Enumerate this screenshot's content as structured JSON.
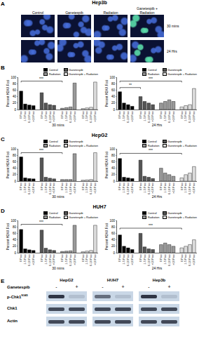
{
  "panels": {
    "A": {
      "label": "A",
      "title": "Hep3b",
      "columns": [
        "Control",
        "Ganetespib",
        "Radiation",
        "Ganetespib + Radiation"
      ],
      "rows": [
        "30 mins",
        "24 Hrs"
      ]
    },
    "B": {
      "label": "B"
    },
    "C": {
      "label": "C",
      "title": "HepG2"
    },
    "D": {
      "label": "D",
      "title": "HUH7"
    },
    "E": {
      "label": "E",
      "treatment": "Ganetespib",
      "cell_lines": [
        "HepG2",
        "HUH7",
        "Hep3b"
      ],
      "lanes": [
        "-",
        "+"
      ],
      "rows": [
        {
          "text": "p-Chk1",
          "sup": "S345"
        },
        {
          "text": "Chk1"
        },
        {
          "text": "Actin"
        }
      ]
    }
  },
  "chart_data": [
    {
      "type": "bar",
      "x_label": "30 mins",
      "y_label": "Percent H2AX Foci",
      "categories": [
        "0 Foci",
        "1-5 Foci",
        "6-10 Foci",
        ">10 Foci"
      ],
      "series": [
        {
          "name": "Control",
          "color": "#000000",
          "values": [
            57,
            17,
            14,
            12
          ]
        },
        {
          "name": "Ganetespib",
          "color": "#555555",
          "values": [
            52,
            20,
            15,
            13
          ]
        },
        {
          "name": "Radiation",
          "color": "#999999",
          "values": [
            4,
            6,
            8,
            82
          ]
        },
        {
          "name": "Ganetespib + Radiation",
          "color": "#dcdcdc",
          "values": [
            3,
            5,
            7,
            85
          ]
        }
      ],
      "ylim": [
        0,
        100
      ],
      "yticks": [
        0,
        20,
        40,
        60,
        80,
        100
      ],
      "grid": false,
      "legend": "top",
      "annotations": [
        {
          "text": "***",
          "from": "Control",
          "to": "Radiation",
          "y": 88
        }
      ]
    },
    {
      "type": "bar",
      "x_label": "24 Hrs",
      "y_label": "Percent H2AX Foci",
      "categories": [
        "0 Foci",
        "1-5 Foci",
        "6-10 Foci",
        ">10 Foci"
      ],
      "series": [
        {
          "name": "Control",
          "color": "#000000",
          "values": [
            55,
            20,
            15,
            10
          ]
        },
        {
          "name": "Ganetespib",
          "color": "#555555",
          "values": [
            40,
            25,
            20,
            15
          ]
        },
        {
          "name": "Radiation",
          "color": "#999999",
          "values": [
            20,
            25,
            30,
            25
          ]
        },
        {
          "name": "Ganetespib + Radiation",
          "color": "#dcdcdc",
          "values": [
            8,
            12,
            15,
            65
          ]
        }
      ],
      "ylim": [
        0,
        100
      ],
      "yticks": [
        0,
        20,
        40,
        60,
        80,
        100
      ],
      "grid": false,
      "legend": "top",
      "annotations": [
        {
          "text": "**",
          "from": "Control",
          "to": "Ganetespib",
          "y": 68
        },
        {
          "text": "***",
          "from": "Control",
          "to": "Ganetespib + Radiation",
          "y": 88
        }
      ]
    },
    {
      "type": "bar",
      "x_label": "30 mins",
      "y_label": "Percent H2AX Foci",
      "categories": [
        "0 Foci",
        "1-5 Foci",
        "6-10 Foci",
        ">10 Foci"
      ],
      "series": [
        {
          "name": "Control",
          "color": "#000000",
          "values": [
            75,
            10,
            8,
            7
          ]
        },
        {
          "name": "Ganetespib",
          "color": "#555555",
          "values": [
            72,
            12,
            9,
            7
          ]
        },
        {
          "name": "Radiation",
          "color": "#999999",
          "values": [
            5,
            5,
            5,
            85
          ]
        },
        {
          "name": "Ganetespib + Radiation",
          "color": "#dcdcdc",
          "values": [
            3,
            4,
            5,
            88
          ]
        }
      ],
      "ylim": [
        0,
        100
      ],
      "yticks": [
        0,
        20,
        40,
        60,
        80,
        100
      ],
      "grid": false,
      "legend": "top",
      "annotations": [
        {
          "text": "***",
          "from": "Control",
          "to": "Radiation",
          "y": 88
        }
      ]
    },
    {
      "type": "bar",
      "x_label": "24 Hrs",
      "y_label": "Percent H2AX Foci",
      "categories": [
        "0 Foci",
        "1-5 Foci",
        "6-10 Foci",
        ">10 Foci"
      ],
      "series": [
        {
          "name": "Control",
          "color": "#000000",
          "values": [
            70,
            12,
            10,
            8
          ]
        },
        {
          "name": "Ganetespib",
          "color": "#555555",
          "values": [
            65,
            15,
            12,
            8
          ]
        },
        {
          "name": "Radiation",
          "color": "#999999",
          "values": [
            40,
            25,
            20,
            15
          ]
        },
        {
          "name": "Ganetespib + Radiation",
          "color": "#dcdcdc",
          "values": [
            10,
            20,
            25,
            45
          ]
        }
      ],
      "ylim": [
        0,
        100
      ],
      "yticks": [
        0,
        20,
        40,
        60,
        80,
        100
      ],
      "grid": false,
      "legend": "top",
      "annotations": [
        {
          "text": "***",
          "from": "Control",
          "to": "Ganetespib + Radiation",
          "y": 86
        }
      ]
    },
    {
      "type": "bar",
      "x_label": "30 mins",
      "y_label": "Percent H2AX Foci",
      "categories": [
        "0 Foci",
        "1-5 Foci",
        "6-10 Foci",
        ">10 Foci"
      ],
      "series": [
        {
          "name": "Control",
          "color": "#000000",
          "values": [
            72,
            12,
            9,
            7
          ]
        },
        {
          "name": "Ganetespib",
          "color": "#555555",
          "values": [
            70,
            14,
            9,
            7
          ]
        },
        {
          "name": "Radiation",
          "color": "#999999",
          "values": [
            4,
            5,
            6,
            85
          ]
        },
        {
          "name": "Ganetespib + Radiation",
          "color": "#dcdcdc",
          "values": [
            3,
            5,
            7,
            85
          ]
        }
      ],
      "ylim": [
        0,
        100
      ],
      "yticks": [
        0,
        20,
        40,
        60,
        80,
        100
      ],
      "grid": false,
      "legend": "top",
      "annotations": [
        {
          "text": "***",
          "from": "Control",
          "to": "Radiation",
          "y": 88
        }
      ]
    },
    {
      "type": "bar",
      "x_label": "24 Hrs",
      "y_label": "Percent H2AX Foci",
      "categories": [
        "0 Foci",
        "1-5 Foci",
        "6-10 Foci",
        ">10 Foci"
      ],
      "series": [
        {
          "name": "Control",
          "color": "#000000",
          "values": [
            55,
            20,
            15,
            10
          ]
        },
        {
          "name": "Ganetespib",
          "color": "#555555",
          "values": [
            60,
            18,
            12,
            10
          ]
        },
        {
          "name": "Radiation",
          "color": "#999999",
          "values": [
            25,
            30,
            25,
            20
          ]
        },
        {
          "name": "Ganetespib + Radiation",
          "color": "#dcdcdc",
          "values": [
            15,
            20,
            25,
            40
          ]
        }
      ],
      "ylim": [
        0,
        100
      ],
      "yticks": [
        0,
        20,
        40,
        60,
        80,
        100
      ],
      "grid": false,
      "legend": "top",
      "annotations": [
        {
          "text": "***",
          "from": "Control",
          "to": "Ganetespib + Radiation",
          "y": 76
        }
      ]
    }
  ]
}
